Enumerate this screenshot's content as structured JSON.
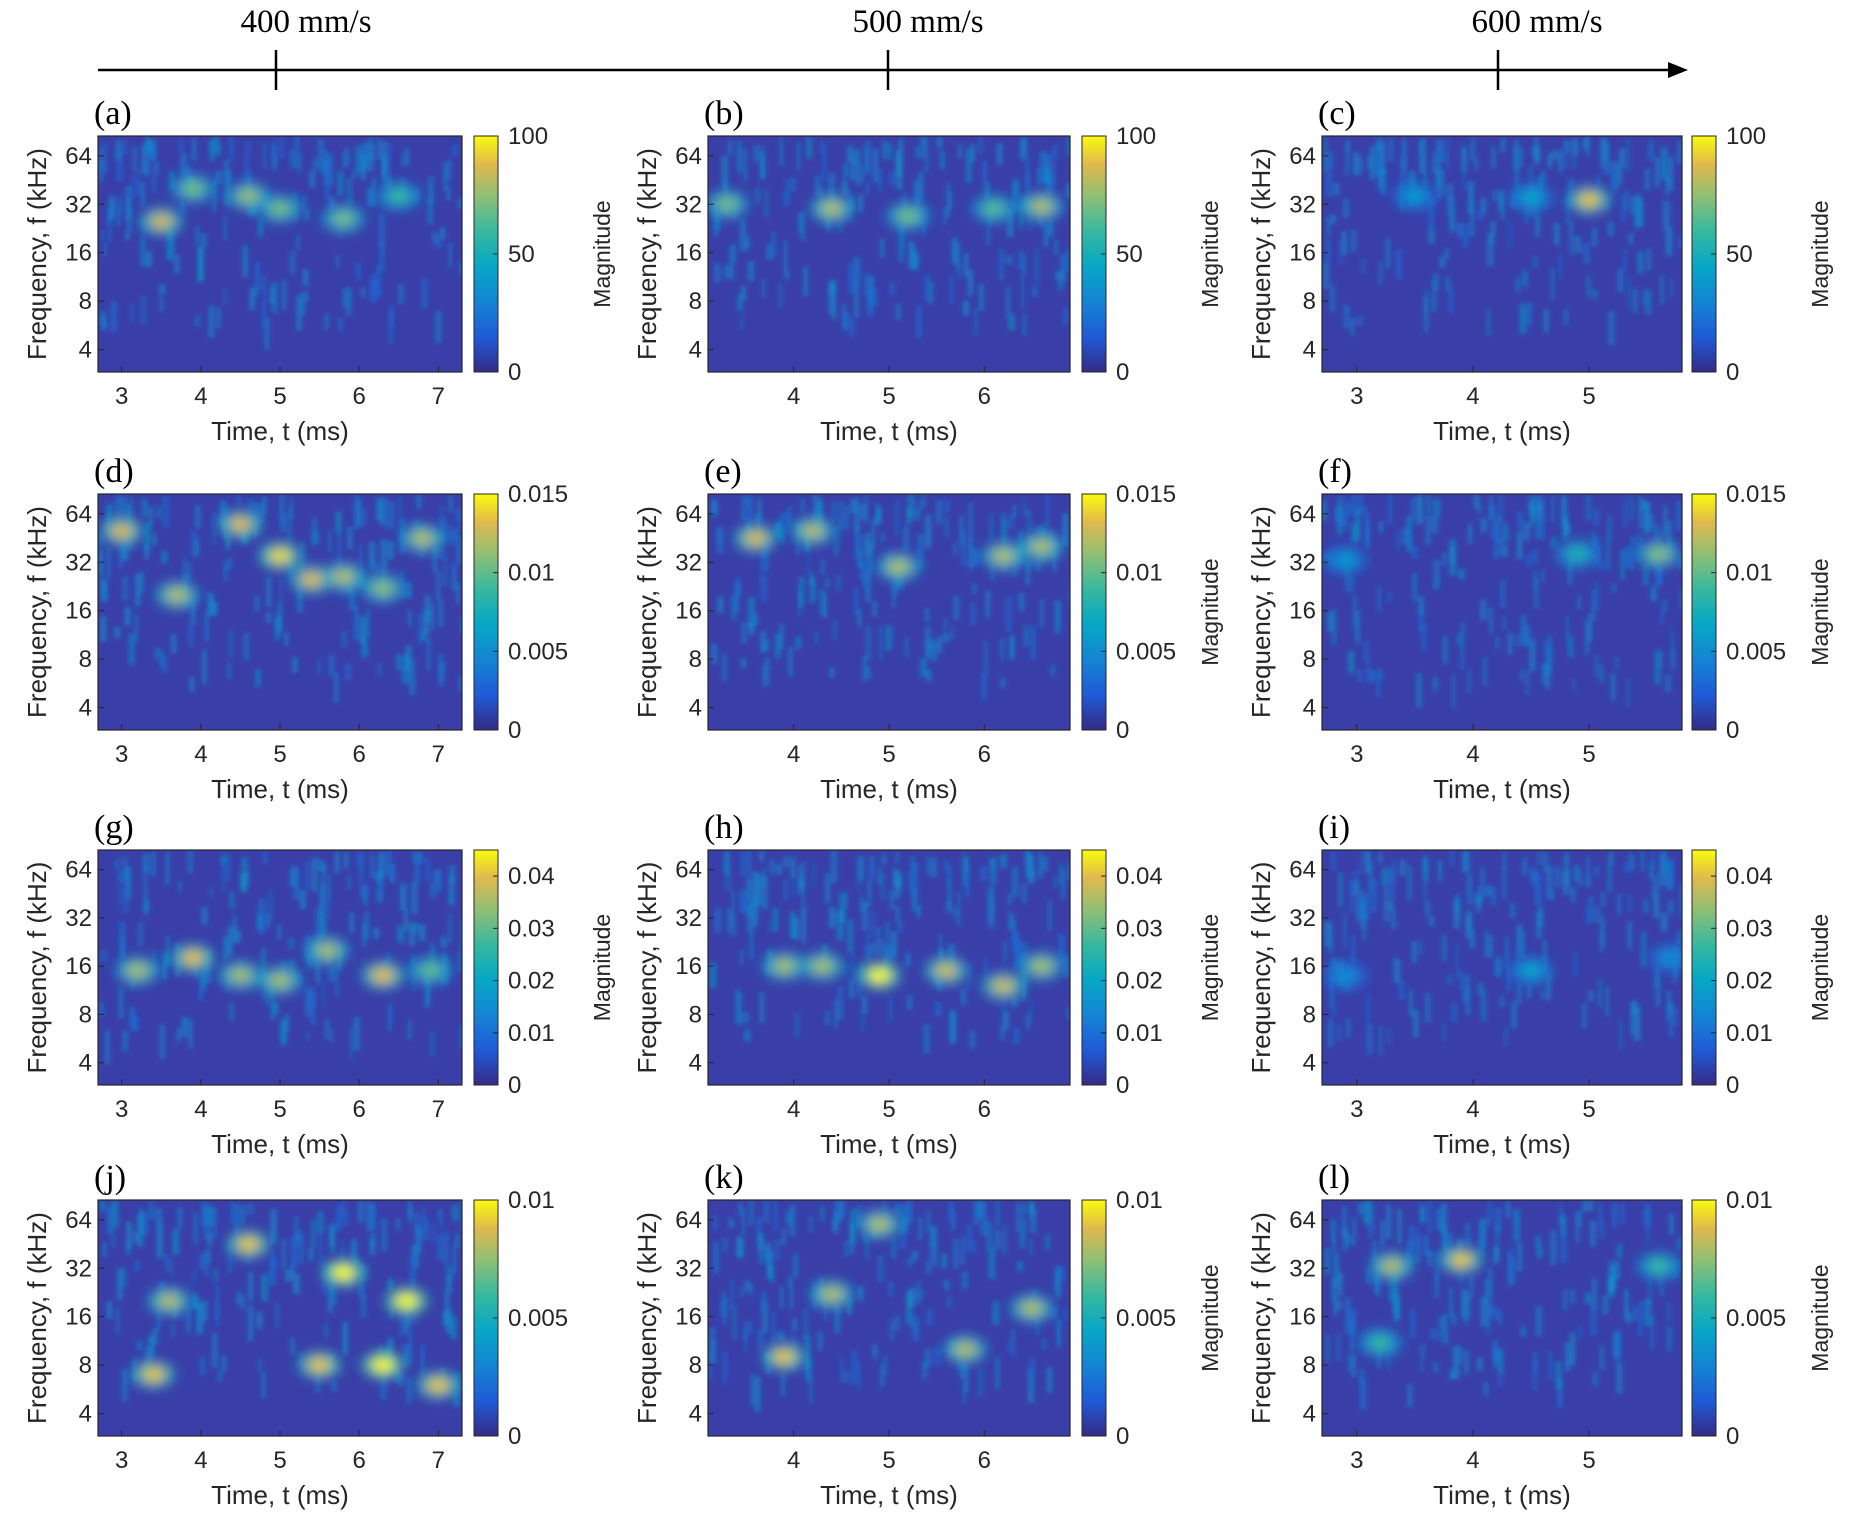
{
  "speed_axis": {
    "labels": [
      "400 mm/s",
      "500 mm/s",
      "600 mm/s"
    ]
  },
  "chart_data": [
    {
      "type": "heatmap",
      "panel": "(a)",
      "speed": "400 mm/s",
      "xlabel": "Time, t (ms)",
      "ylabel": "Frequency, f (kHz)",
      "xticks": [
        3,
        4,
        5,
        6,
        7
      ],
      "xlim": [
        2.7,
        7.3
      ],
      "yticks": [
        4,
        8,
        16,
        32,
        64
      ],
      "ylim": [
        2.9,
        85
      ],
      "yscale": "log2",
      "colorbar": {
        "label": "Magnitude",
        "ticks": [
          "0",
          "50",
          "100"
        ],
        "range": [
          0,
          100
        ]
      },
      "hot_spots": [
        {
          "t": 3.5,
          "f": 25,
          "m": 85
        },
        {
          "t": 3.9,
          "f": 40,
          "m": 70
        },
        {
          "t": 4.6,
          "f": 36,
          "m": 75
        },
        {
          "t": 5.0,
          "f": 30,
          "m": 70
        },
        {
          "t": 5.8,
          "f": 26,
          "m": 70
        },
        {
          "t": 6.5,
          "f": 36,
          "m": 60
        }
      ]
    },
    {
      "type": "heatmap",
      "panel": "(b)",
      "speed": "500 mm/s",
      "xlabel": "Time, t (ms)",
      "ylabel": "Frequency, f (kHz)",
      "xticks": [
        4,
        5,
        6
      ],
      "xlim": [
        3.1,
        6.9
      ],
      "yticks": [
        4,
        8,
        16,
        32,
        64
      ],
      "ylim": [
        2.9,
        85
      ],
      "yscale": "log2",
      "colorbar": {
        "label": "Magnitude",
        "ticks": [
          "0",
          "50",
          "100"
        ],
        "range": [
          0,
          100
        ]
      },
      "hot_spots": [
        {
          "t": 3.3,
          "f": 32,
          "m": 70
        },
        {
          "t": 4.4,
          "f": 30,
          "m": 80
        },
        {
          "t": 5.2,
          "f": 27,
          "m": 70
        },
        {
          "t": 6.1,
          "f": 30,
          "m": 65
        },
        {
          "t": 6.6,
          "f": 31,
          "m": 80
        }
      ]
    },
    {
      "type": "heatmap",
      "panel": "(c)",
      "speed": "600 mm/s",
      "xlabel": "Time, t (ms)",
      "ylabel": "Frequency, f (kHz)",
      "xticks": [
        3,
        4,
        5
      ],
      "xlim": [
        2.7,
        5.8
      ],
      "yticks": [
        4,
        8,
        16,
        32,
        64
      ],
      "ylim": [
        2.9,
        85
      ],
      "yscale": "log2",
      "colorbar": {
        "label": "Magnitude",
        "ticks": [
          "0",
          "50",
          "100"
        ],
        "range": [
          0,
          100
        ]
      },
      "hot_spots": [
        {
          "t": 5.0,
          "f": 34,
          "m": 90
        },
        {
          "t": 4.5,
          "f": 35,
          "m": 45
        },
        {
          "t": 3.5,
          "f": 36,
          "m": 40
        }
      ]
    },
    {
      "type": "heatmap",
      "panel": "(d)",
      "speed": "400 mm/s",
      "xlabel": "Time, t (ms)",
      "ylabel": "Frequency, f (kHz)",
      "xticks": [
        3,
        4,
        5,
        6,
        7
      ],
      "xlim": [
        2.7,
        7.3
      ],
      "yticks": [
        4,
        8,
        16,
        32,
        64
      ],
      "ylim": [
        2.9,
        85
      ],
      "yscale": "log2",
      "colorbar": {
        "label": "",
        "ticks": [
          "0",
          "0.005",
          "0.01",
          "0.015"
        ],
        "range": [
          0,
          0.015
        ]
      },
      "hot_spots": [
        {
          "t": 3.0,
          "f": 50,
          "m": 0.013
        },
        {
          "t": 3.7,
          "f": 20,
          "m": 0.012
        },
        {
          "t": 4.5,
          "f": 55,
          "m": 0.013
        },
        {
          "t": 5.0,
          "f": 35,
          "m": 0.014
        },
        {
          "t": 5.4,
          "f": 25,
          "m": 0.013
        },
        {
          "t": 5.8,
          "f": 26,
          "m": 0.012
        },
        {
          "t": 6.3,
          "f": 22,
          "m": 0.011
        },
        {
          "t": 6.8,
          "f": 45,
          "m": 0.012
        }
      ]
    },
    {
      "type": "heatmap",
      "panel": "(e)",
      "speed": "500 mm/s",
      "xlabel": "Time, t (ms)",
      "ylabel": "Frequency, f (kHz)",
      "xticks": [
        4,
        5,
        6
      ],
      "xlim": [
        3.1,
        6.9
      ],
      "yticks": [
        4,
        8,
        16,
        32,
        64
      ],
      "ylim": [
        2.9,
        85
      ],
      "yscale": "log2",
      "colorbar": {
        "label": "Magnitude",
        "ticks": [
          "0",
          "0.005",
          "0.01",
          "0.015"
        ],
        "range": [
          0,
          0.015
        ]
      },
      "hot_spots": [
        {
          "t": 3.6,
          "f": 45,
          "m": 0.013
        },
        {
          "t": 4.2,
          "f": 50,
          "m": 0.012
        },
        {
          "t": 5.1,
          "f": 30,
          "m": 0.012
        },
        {
          "t": 6.2,
          "f": 35,
          "m": 0.012
        },
        {
          "t": 6.6,
          "f": 40,
          "m": 0.012
        }
      ]
    },
    {
      "type": "heatmap",
      "panel": "(f)",
      "speed": "600 mm/s",
      "xlabel": "Time, t (ms)",
      "ylabel": "Frequency, f (kHz)",
      "xticks": [
        3,
        4,
        5
      ],
      "xlim": [
        2.7,
        5.8
      ],
      "yticks": [
        4,
        8,
        16,
        32,
        64
      ],
      "ylim": [
        2.9,
        85
      ],
      "yscale": "log2",
      "colorbar": {
        "label": "Magnitude",
        "ticks": [
          "0",
          "0.005",
          "0.01",
          "0.015"
        ],
        "range": [
          0,
          0.015
        ]
      },
      "hot_spots": [
        {
          "t": 5.6,
          "f": 36,
          "m": 0.011
        },
        {
          "t": 4.9,
          "f": 36,
          "m": 0.008
        },
        {
          "t": 2.9,
          "f": 33,
          "m": 0.006
        }
      ]
    },
    {
      "type": "heatmap",
      "panel": "(g)",
      "speed": "400 mm/s",
      "xlabel": "Time, t (ms)",
      "ylabel": "Frequency, f (kHz)",
      "xticks": [
        3,
        4,
        5,
        6,
        7
      ],
      "xlim": [
        2.7,
        7.3
      ],
      "yticks": [
        4,
        8,
        16,
        32,
        64
      ],
      "ylim": [
        2.9,
        85
      ],
      "yscale": "log2",
      "colorbar": {
        "label": "Magnitude",
        "ticks": [
          "0",
          "0.01",
          "0.02",
          "0.03",
          "0.04"
        ],
        "range": [
          0,
          0.045
        ]
      },
      "hot_spots": [
        {
          "t": 3.2,
          "f": 15,
          "m": 0.035
        },
        {
          "t": 3.9,
          "f": 18,
          "m": 0.04
        },
        {
          "t": 4.5,
          "f": 14,
          "m": 0.035
        },
        {
          "t": 5.0,
          "f": 13,
          "m": 0.035
        },
        {
          "t": 5.6,
          "f": 20,
          "m": 0.035
        },
        {
          "t": 6.3,
          "f": 14,
          "m": 0.04
        },
        {
          "t": 6.9,
          "f": 15,
          "m": 0.03
        }
      ]
    },
    {
      "type": "heatmap",
      "panel": "(h)",
      "speed": "500 mm/s",
      "xlabel": "Time, t (ms)",
      "ylabel": "Frequency, f (kHz)",
      "xticks": [
        4,
        5,
        6
      ],
      "xlim": [
        3.1,
        6.9
      ],
      "yticks": [
        4,
        8,
        16,
        32,
        64
      ],
      "ylim": [
        2.9,
        85
      ],
      "yscale": "log2",
      "colorbar": {
        "label": "Magnitude",
        "ticks": [
          "0",
          "0.01",
          "0.02",
          "0.03",
          "0.04"
        ],
        "range": [
          0,
          0.045
        ]
      },
      "hot_spots": [
        {
          "t": 3.9,
          "f": 16,
          "m": 0.035
        },
        {
          "t": 4.3,
          "f": 16,
          "m": 0.035
        },
        {
          "t": 4.9,
          "f": 14,
          "m": 0.045
        },
        {
          "t": 5.6,
          "f": 15,
          "m": 0.038
        },
        {
          "t": 6.2,
          "f": 12,
          "m": 0.038
        },
        {
          "t": 6.6,
          "f": 16,
          "m": 0.035
        }
      ]
    },
    {
      "type": "heatmap",
      "panel": "(i)",
      "speed": "600 mm/s",
      "xlabel": "Time, t (ms)",
      "ylabel": "Frequency, f (kHz)",
      "xticks": [
        3,
        4,
        5
      ],
      "xlim": [
        2.7,
        5.8
      ],
      "yticks": [
        4,
        8,
        16,
        32,
        64
      ],
      "ylim": [
        2.9,
        85
      ],
      "yscale": "log2",
      "colorbar": {
        "label": "Magnitude",
        "ticks": [
          "0",
          "0.01",
          "0.02",
          "0.03",
          "0.04"
        ],
        "range": [
          0,
          0.045
        ]
      },
      "hot_spots": [
        {
          "t": 4.5,
          "f": 15,
          "m": 0.02
        },
        {
          "t": 2.9,
          "f": 14,
          "m": 0.016
        },
        {
          "t": 5.7,
          "f": 18,
          "m": 0.016
        }
      ]
    },
    {
      "type": "heatmap",
      "panel": "(j)",
      "speed": "400 mm/s",
      "xlabel": "Time, t (ms)",
      "ylabel": "Frequency, f (kHz)",
      "xticks": [
        3,
        4,
        5,
        6,
        7
      ],
      "xlim": [
        2.7,
        7.3
      ],
      "yticks": [
        4,
        8,
        16,
        32,
        64
      ],
      "ylim": [
        2.9,
        85
      ],
      "yscale": "log2",
      "colorbar": {
        "label": "",
        "ticks": [
          "0",
          "0.005",
          "0.01"
        ],
        "range": [
          0,
          0.01
        ]
      },
      "hot_spots": [
        {
          "t": 3.4,
          "f": 7,
          "m": 0.009
        },
        {
          "t": 3.6,
          "f": 20,
          "m": 0.008
        },
        {
          "t": 5.5,
          "f": 8,
          "m": 0.009
        },
        {
          "t": 5.8,
          "f": 30,
          "m": 0.01
        },
        {
          "t": 6.3,
          "f": 8,
          "m": 0.01
        },
        {
          "t": 6.6,
          "f": 20,
          "m": 0.01
        },
        {
          "t": 7.0,
          "f": 6,
          "m": 0.009
        },
        {
          "t": 4.6,
          "f": 45,
          "m": 0.009
        }
      ]
    },
    {
      "type": "heatmap",
      "panel": "(k)",
      "speed": "500 mm/s",
      "xlabel": "Time, t (ms)",
      "ylabel": "Frequency, f (kHz)",
      "xticks": [
        4,
        5,
        6
      ],
      "xlim": [
        3.1,
        6.9
      ],
      "yticks": [
        4,
        8,
        16,
        32,
        64
      ],
      "ylim": [
        2.9,
        85
      ],
      "yscale": "log2",
      "colorbar": {
        "label": "Magnitude",
        "ticks": [
          "0",
          "0.005",
          "0.01"
        ],
        "range": [
          0,
          0.01
        ]
      },
      "hot_spots": [
        {
          "t": 3.9,
          "f": 9,
          "m": 0.009
        },
        {
          "t": 4.4,
          "f": 22,
          "m": 0.008
        },
        {
          "t": 5.8,
          "f": 10,
          "m": 0.008
        },
        {
          "t": 6.5,
          "f": 18,
          "m": 0.008
        },
        {
          "t": 4.9,
          "f": 60,
          "m": 0.008
        }
      ]
    },
    {
      "type": "heatmap",
      "panel": "(l)",
      "speed": "600 mm/s",
      "xlabel": "Time, t (ms)",
      "ylabel": "Frequency, f (kHz)",
      "xticks": [
        3,
        4,
        5
      ],
      "xlim": [
        2.7,
        5.8
      ],
      "yticks": [
        4,
        8,
        16,
        32,
        64
      ],
      "ylim": [
        2.9,
        85
      ],
      "yscale": "log2",
      "colorbar": {
        "label": "Magnitude",
        "ticks": [
          "0",
          "0.005",
          "0.01"
        ],
        "range": [
          0,
          0.01
        ]
      },
      "hot_spots": [
        {
          "t": 3.3,
          "f": 33,
          "m": 0.008
        },
        {
          "t": 3.9,
          "f": 36,
          "m": 0.009
        },
        {
          "t": 3.2,
          "f": 11,
          "m": 0.006
        },
        {
          "t": 5.6,
          "f": 33,
          "m": 0.006
        }
      ]
    }
  ]
}
